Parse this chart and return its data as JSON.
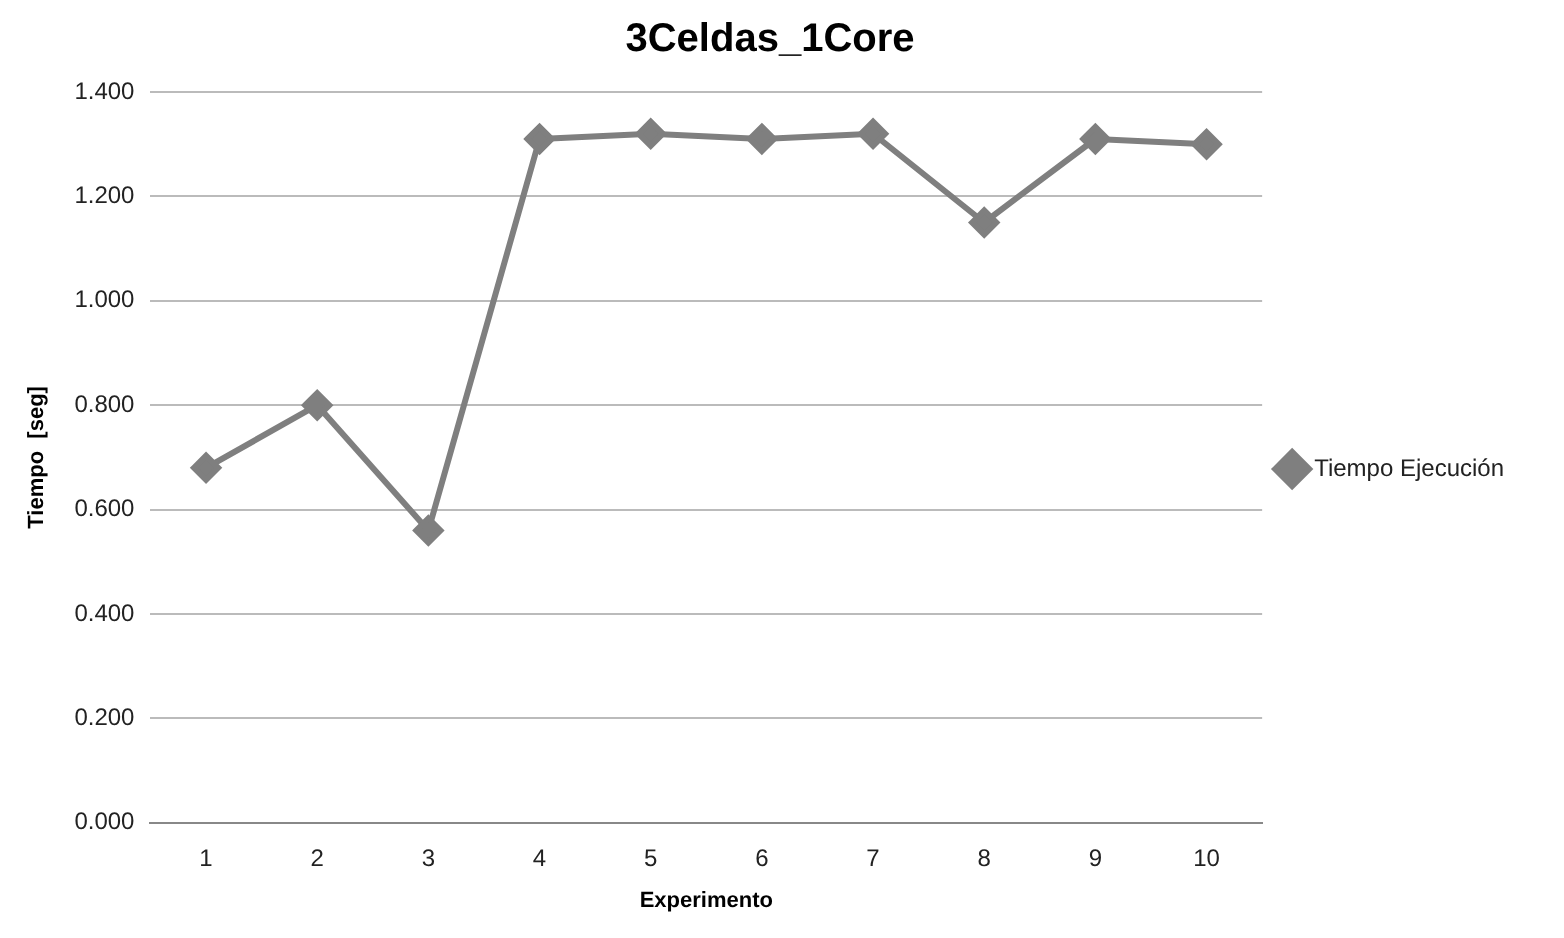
{
  "chart_data": {
    "type": "line",
    "title": "3Celdas_1Core",
    "xlabel": "Experimento",
    "ylabel": "Tiempo  [seg]",
    "categories": [
      "1",
      "2",
      "3",
      "4",
      "5",
      "6",
      "7",
      "8",
      "9",
      "10"
    ],
    "series": [
      {
        "name": "Tiempo Ejecución",
        "color": "#7f7f7f",
        "values": [
          0.68,
          0.8,
          0.56,
          1.31,
          1.32,
          1.31,
          1.32,
          1.15,
          1.31,
          1.3
        ]
      }
    ],
    "ylim": [
      0,
      1.4
    ],
    "yticks": [
      {
        "value": 0,
        "label": "0.000"
      },
      {
        "value": 0.2,
        "label": "0.200"
      },
      {
        "value": 0.4,
        "label": "0.400"
      },
      {
        "value": 0.6,
        "label": "0.600"
      },
      {
        "value": 0.8,
        "label": "0.800"
      },
      {
        "value": 1,
        "label": "1.000"
      },
      {
        "value": 1.2,
        "label": "1.200"
      },
      {
        "value": 1.4,
        "label": "1.400"
      }
    ],
    "grid": "y",
    "legend": "right",
    "marker": "diamond",
    "line_style": "solid"
  }
}
